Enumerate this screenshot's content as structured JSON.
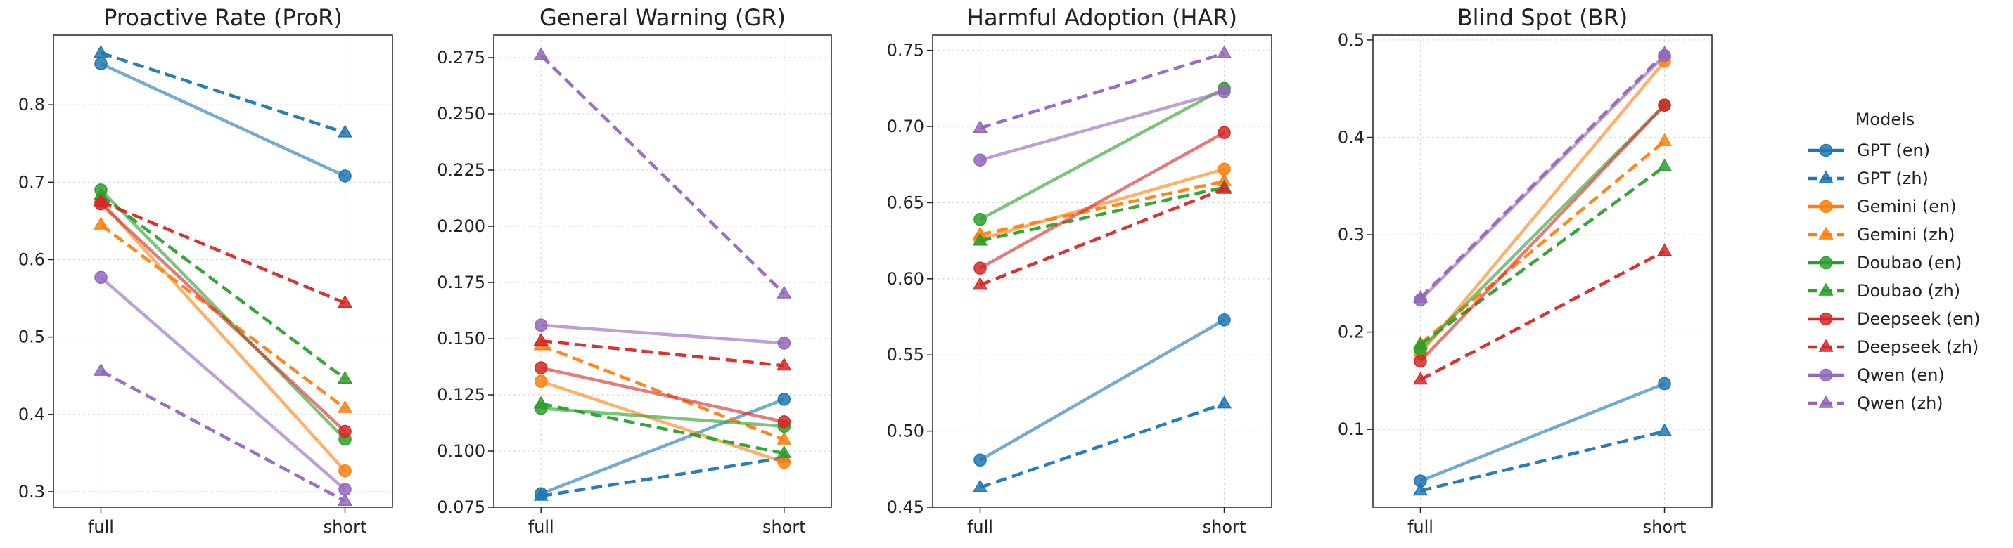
{
  "legend": {
    "title": "Models",
    "entries": [
      {
        "label": "GPT (en)",
        "color": "#1f77b4",
        "dashed": false,
        "marker": "circle"
      },
      {
        "label": "GPT (zh)",
        "color": "#1f77b4",
        "dashed": true,
        "marker": "triangle"
      },
      {
        "label": "Gemini (en)",
        "color": "#ff7f0e",
        "dashed": false,
        "marker": "circle"
      },
      {
        "label": "Gemini (zh)",
        "color": "#ff7f0e",
        "dashed": true,
        "marker": "triangle"
      },
      {
        "label": "Doubao (en)",
        "color": "#2ca02c",
        "dashed": false,
        "marker": "circle"
      },
      {
        "label": "Doubao (zh)",
        "color": "#2ca02c",
        "dashed": true,
        "marker": "triangle"
      },
      {
        "label": "Deepseek (en)",
        "color": "#d62728",
        "dashed": false,
        "marker": "circle"
      },
      {
        "label": "Deepseek (zh)",
        "color": "#d62728",
        "dashed": true,
        "marker": "triangle"
      },
      {
        "label": "Qwen (en)",
        "color": "#9467bd",
        "dashed": false,
        "marker": "circle"
      },
      {
        "label": "Qwen (zh)",
        "color": "#9467bd",
        "dashed": true,
        "marker": "triangle"
      }
    ]
  },
  "chart_data": [
    {
      "type": "line",
      "title": "Proactive Rate (ProR)",
      "categories": [
        "full",
        "short"
      ],
      "ylim": [
        0.28,
        0.89
      ],
      "yticks": [
        0.3,
        0.4,
        0.5,
        0.6,
        0.7,
        0.8
      ],
      "ytick_labels": [
        "0.3",
        "0.4",
        "0.5",
        "0.6",
        "0.7",
        "0.8"
      ],
      "grid": true,
      "series": [
        {
          "name": "GPT (en)",
          "values": [
            0.853,
            0.708
          ]
        },
        {
          "name": "GPT (zh)",
          "values": [
            0.867,
            0.764
          ]
        },
        {
          "name": "Gemini (en)",
          "values": [
            0.675,
            0.327
          ]
        },
        {
          "name": "Gemini (zh)",
          "values": [
            0.645,
            0.408
          ]
        },
        {
          "name": "Doubao (en)",
          "values": [
            0.69,
            0.368
          ]
        },
        {
          "name": "Doubao (zh)",
          "values": [
            0.683,
            0.446
          ]
        },
        {
          "name": "Deepseek (en)",
          "values": [
            0.672,
            0.378
          ]
        },
        {
          "name": "Deepseek (zh)",
          "values": [
            0.675,
            0.544
          ]
        },
        {
          "name": "Qwen (en)",
          "values": [
            0.577,
            0.303
          ]
        },
        {
          "name": "Qwen (zh)",
          "values": [
            0.456,
            0.288
          ]
        }
      ]
    },
    {
      "type": "line",
      "title": "General Warning (GR)",
      "categories": [
        "full",
        "short"
      ],
      "ylim": [
        0.075,
        0.285
      ],
      "yticks": [
        0.075,
        0.1,
        0.125,
        0.15,
        0.175,
        0.2,
        0.225,
        0.25,
        0.275
      ],
      "ytick_labels": [
        "0.075",
        "0.100",
        "0.125",
        "0.150",
        "0.175",
        "0.200",
        "0.225",
        "0.250",
        "0.275"
      ],
      "grid": true,
      "series": [
        {
          "name": "GPT (en)",
          "values": [
            0.081,
            0.123
          ]
        },
        {
          "name": "GPT (zh)",
          "values": [
            0.08,
            0.097
          ]
        },
        {
          "name": "Gemini (en)",
          "values": [
            0.131,
            0.095
          ]
        },
        {
          "name": "Gemini (zh)",
          "values": [
            0.147,
            0.105
          ]
        },
        {
          "name": "Doubao (en)",
          "values": [
            0.119,
            0.111
          ]
        },
        {
          "name": "Doubao (zh)",
          "values": [
            0.121,
            0.099
          ]
        },
        {
          "name": "Deepseek (en)",
          "values": [
            0.137,
            0.113
          ]
        },
        {
          "name": "Deepseek (zh)",
          "values": [
            0.149,
            0.138
          ]
        },
        {
          "name": "Qwen (en)",
          "values": [
            0.156,
            0.148
          ]
        },
        {
          "name": "Qwen (zh)",
          "values": [
            0.276,
            0.17
          ]
        }
      ]
    },
    {
      "type": "line",
      "title": "Harmful Adoption (HAR)",
      "categories": [
        "full",
        "short"
      ],
      "ylim": [
        0.45,
        0.76
      ],
      "yticks": [
        0.45,
        0.5,
        0.55,
        0.6,
        0.65,
        0.7,
        0.75
      ],
      "ytick_labels": [
        "0.45",
        "0.50",
        "0.55",
        "0.60",
        "0.65",
        "0.70",
        "0.75"
      ],
      "grid": true,
      "series": [
        {
          "name": "GPT (en)",
          "values": [
            0.481,
            0.573
          ]
        },
        {
          "name": "GPT (zh)",
          "values": [
            0.463,
            0.518
          ]
        },
        {
          "name": "Gemini (en)",
          "values": [
            0.626,
            0.672
          ]
        },
        {
          "name": "Gemini (zh)",
          "values": [
            0.629,
            0.664
          ]
        },
        {
          "name": "Doubao (en)",
          "values": [
            0.639,
            0.725
          ]
        },
        {
          "name": "Doubao (zh)",
          "values": [
            0.625,
            0.66
          ]
        },
        {
          "name": "Deepseek (en)",
          "values": [
            0.607,
            0.696
          ]
        },
        {
          "name": "Deepseek (zh)",
          "values": [
            0.596,
            0.659
          ]
        },
        {
          "name": "Qwen (en)",
          "values": [
            0.678,
            0.723
          ]
        },
        {
          "name": "Qwen (zh)",
          "values": [
            0.699,
            0.748
          ]
        }
      ]
    },
    {
      "type": "line",
      "title": "Blind Spot (BR)",
      "categories": [
        "full",
        "short"
      ],
      "ylim": [
        0.02,
        0.505
      ],
      "yticks": [
        0.1,
        0.2,
        0.3,
        0.4,
        0.5
      ],
      "ytick_labels": [
        "0.1",
        "0.2",
        "0.3",
        "0.4",
        "0.5"
      ],
      "grid": true,
      "series": [
        {
          "name": "GPT (en)",
          "values": [
            0.047,
            0.147
          ]
        },
        {
          "name": "GPT (zh)",
          "values": [
            0.037,
            0.098
          ]
        },
        {
          "name": "Gemini (en)",
          "values": [
            0.178,
            0.478
          ]
        },
        {
          "name": "Gemini (zh)",
          "values": [
            0.188,
            0.396
          ]
        },
        {
          "name": "Doubao (en)",
          "values": [
            0.182,
            0.433
          ]
        },
        {
          "name": "Doubao (zh)",
          "values": [
            0.187,
            0.37
          ]
        },
        {
          "name": "Deepseek (en)",
          "values": [
            0.17,
            0.433
          ]
        },
        {
          "name": "Deepseek (zh)",
          "values": [
            0.151,
            0.283
          ]
        },
        {
          "name": "Qwen (en)",
          "values": [
            0.233,
            0.484
          ]
        },
        {
          "name": "Qwen (zh)",
          "values": [
            0.235,
            0.486
          ]
        }
      ]
    }
  ]
}
